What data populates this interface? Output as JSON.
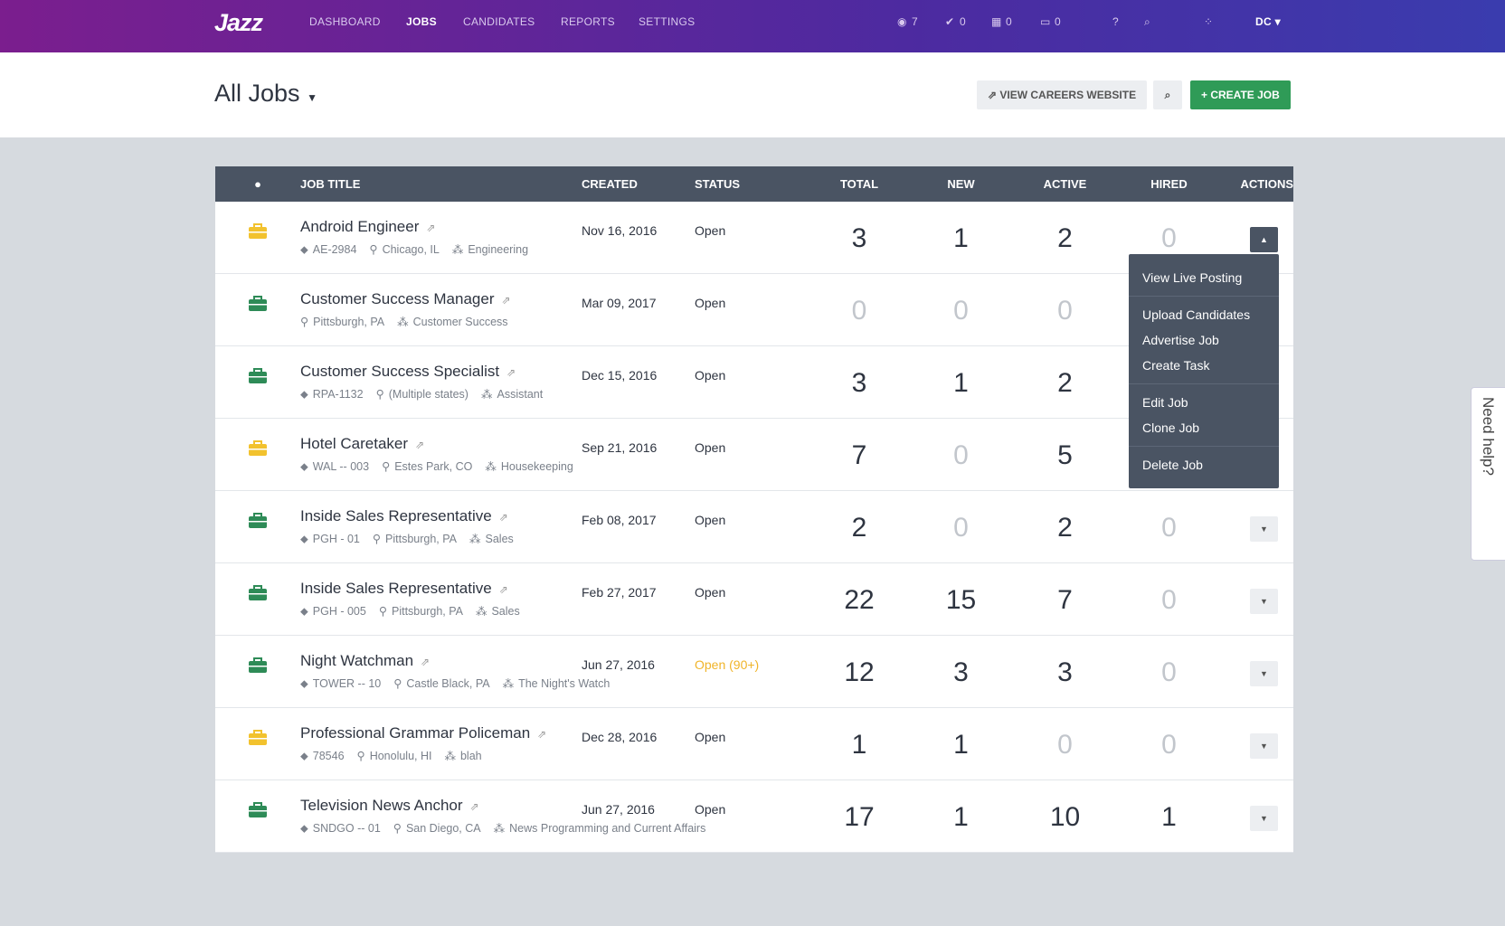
{
  "navbar": {
    "logo": "Jazz",
    "items": [
      "DASHBOARD",
      "JOBS",
      "CANDIDATES",
      "REPORTS",
      "SETTINGS"
    ],
    "active_item": 1,
    "counters": [
      "7",
      "0",
      "0",
      "0"
    ],
    "user": "DC"
  },
  "header": {
    "title": "All Jobs",
    "buttons": [
      "VIEW CAREERS WEBSITE",
      "CREATE JOB"
    ]
  },
  "table": {
    "columns": [
      "JOB TITLE",
      "CREATED",
      "STATUS",
      "TOTAL",
      "NEW",
      "ACTIVE",
      "HIRED",
      "ACTIONS"
    ],
    "rows": [
      {
        "icon_color": "#f2c22e",
        "title": "Android Engineer",
        "code": "AE-2984",
        "location": "Chicago, IL",
        "department": "Engineering",
        "created": "Nov 16, 2016",
        "status": "Open",
        "total": 3,
        "new": 1,
        "active": 2,
        "hired": 0
      },
      {
        "icon_color": "#2e8b57",
        "title": "Customer Success Manager",
        "location": "Pittsburgh, PA",
        "department": "Customer Success",
        "created": "Mar 09, 2017",
        "status": "Open",
        "total": 0,
        "new": 0,
        "active": 0
      },
      {
        "icon_color": "#2e8b57",
        "title": "Customer Success Specialist",
        "code": "RPA-1132",
        "location": "(Multiple states)",
        "department": "Assistant",
        "created": "Dec 15, 2016",
        "status": "Open",
        "total": 3,
        "new": 1,
        "active": 2
      },
      {
        "icon_color": "#f2c22e",
        "title": "Hotel Caretaker",
        "code": "WAL -- 003",
        "location": "Estes Park, CO",
        "department": "Housekeeping",
        "created": "Sep 21, 2016",
        "status": "Open",
        "total": 7,
        "new": 0,
        "active": 5
      },
      {
        "icon_color": "#2e8b57",
        "title": "Inside Sales Representative",
        "code": "PGH - 01",
        "location": "Pittsburgh, PA",
        "department": "Sales",
        "created": "Feb 08, 2017",
        "status": "Open",
        "total": 2,
        "new": 0,
        "active": 2,
        "hired": 0
      },
      {
        "icon_color": "#2e8b57",
        "title": "Inside Sales Representative",
        "code": "PGH - 005",
        "location": "Pittsburgh, PA",
        "department": "Sales",
        "created": "Feb 27, 2017",
        "status": "Open",
        "total": 22,
        "new": 15,
        "active": 7,
        "hired": 0
      },
      {
        "icon_color": "#2e8b57",
        "title": "Night Watchman",
        "code": "TOWER -- 10",
        "location": "Castle Black, PA",
        "department": "The Night's Watch",
        "created": "Jun 27, 2016",
        "status": "Open (90+)",
        "status_color": "#f0b429",
        "total": 12,
        "new": 3,
        "active": 3,
        "hired": 0
      },
      {
        "icon_color": "#f2c22e",
        "title": "Professional Grammar Policeman",
        "code": "78546",
        "location": "Honolulu, HI",
        "department": "blah",
        "created": "Dec 28, 2016",
        "status": "Open",
        "total": 1,
        "new": 1,
        "active": 0,
        "hired": 0
      },
      {
        "icon_color": "#2e8b57",
        "title": "Television News Anchor",
        "code": "SNDGO -- 01",
        "location": "San Diego, CA",
        "department": "News Programming and Current Affairs",
        "created": "Jun 27, 2016",
        "status": "Open",
        "total": 17,
        "new": 1,
        "active": 10,
        "hired": 1
      }
    ]
  },
  "actions_menu": {
    "groups": [
      [
        "View Live Posting"
      ],
      [
        "Upload Candidates",
        "Advertise Job",
        "Create Task"
      ],
      [
        "Edit Job",
        "Clone Job"
      ],
      [
        "Delete Job"
      ]
    ]
  },
  "help_tab": "Need help?"
}
